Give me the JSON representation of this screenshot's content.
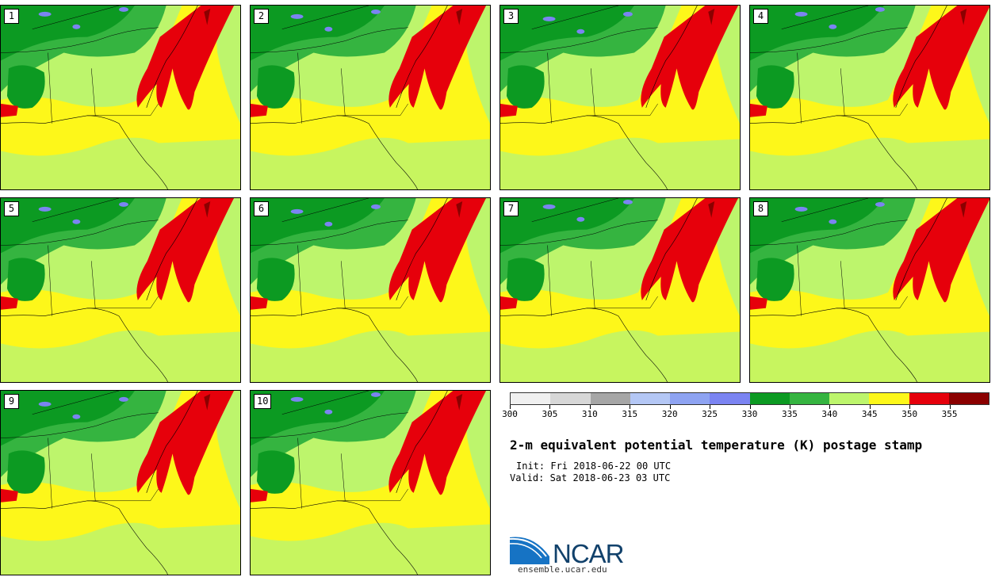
{
  "panels": [
    "1",
    "2",
    "3",
    "4",
    "5",
    "6",
    "7",
    "8",
    "9",
    "10"
  ],
  "colors": {
    "blue": "#7b84f2",
    "dark_green": "#0c9a22",
    "mid_green": "#35b440",
    "light_green": "#bdf56c",
    "yellow": "#fdf71a",
    "red": "#e6000b",
    "dark_red": "#8b0000",
    "border": "#000000"
  },
  "colorbar": {
    "colors": [
      "#f0f0f0",
      "#d7d7d7",
      "#a6a6a6",
      "#b4c7f5",
      "#8ea3f2",
      "#7b84f2",
      "#0c9a22",
      "#35b440",
      "#bdf56c",
      "#fdf71a",
      "#e6000b",
      "#8b0000"
    ],
    "ticks": [
      "300",
      "305",
      "310",
      "315",
      "320",
      "325",
      "330",
      "335",
      "340",
      "345",
      "350",
      "355"
    ]
  },
  "title": "2-m equivalent potential temperature (K) postage stamp",
  "init": "Init: Fri 2018-06-22 00 UTC",
  "valid": "Valid: Sat 2018-06-23 03 UTC",
  "logo": {
    "text": "NCAR",
    "url": "ensemble.ucar.edu"
  }
}
